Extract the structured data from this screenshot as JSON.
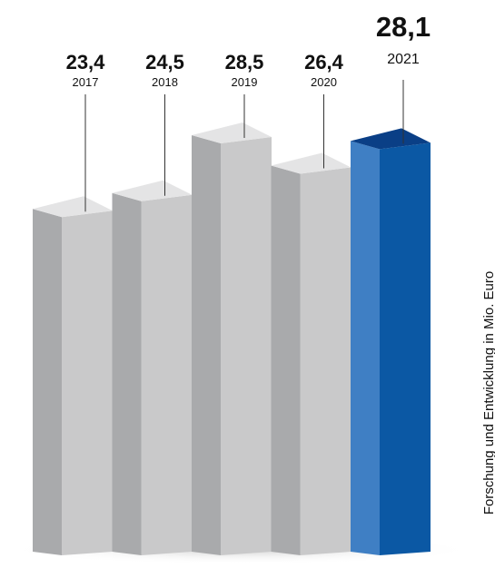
{
  "chart_data": {
    "type": "bar",
    "categories": [
      "2017",
      "2018",
      "2019",
      "2020",
      "2021"
    ],
    "values": [
      "23,4",
      "24,5",
      "28,5",
      "26,4",
      "28,1"
    ],
    "series": [
      {
        "values": [
          23.4,
          24.5,
          28.5,
          26.4,
          28.1
        ]
      }
    ],
    "title": "",
    "xlabel": "",
    "ylabel": "Forschung und Entwicklung in Mio. Euro",
    "highlight_category": "2021",
    "colors": {
      "bar_front": "#c9c9ca",
      "bar_side": "#a9aaac",
      "bar_top": "#e4e4e5",
      "highlight_front": "#0b58a4",
      "highlight_side": "#3f7fc4",
      "highlight_top": "#0a3f86",
      "leader_line": "#333333",
      "shadow": "#d6d6d6"
    },
    "style": "3d-bars",
    "grid": false,
    "legend": "none"
  }
}
